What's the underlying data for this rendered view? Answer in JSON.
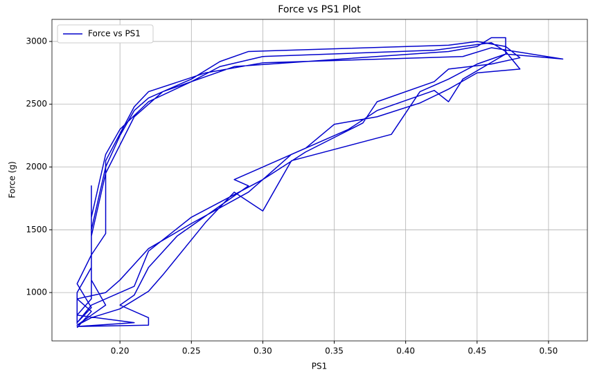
{
  "chart_data": {
    "type": "line",
    "title": "Force vs PS1 Plot",
    "x_label": "PS1",
    "y_label": "Force (g)",
    "x": [
      0.17,
      0.17,
      0.18,
      0.18,
      0.18,
      0.19,
      0.2,
      0.21,
      0.22,
      0.25,
      0.27,
      0.29,
      0.43,
      0.45,
      0.47,
      0.48,
      0.46,
      0.43,
      0.42,
      0.38,
      0.37,
      0.33,
      0.3,
      0.25,
      0.22,
      0.21,
      0.18,
      0.17,
      0.18,
      0.17,
      0.18,
      0.19,
      0.19,
      0.21,
      0.22,
      0.26,
      0.3,
      0.44,
      0.46,
      0.51,
      0.47,
      0.45,
      0.43,
      0.41,
      0.39,
      0.37,
      0.32,
      0.3,
      0.28,
      0.26,
      0.23,
      0.22,
      0.2,
      0.18,
      0.17,
      0.19,
      0.18,
      0.18,
      0.19,
      0.2,
      0.22,
      0.25,
      0.27,
      0.3,
      0.42,
      0.46,
      0.47,
      0.48,
      0.45,
      0.43,
      0.41,
      0.38,
      0.35,
      0.33,
      0.28,
      0.29,
      0.24,
      0.22,
      0.21,
      0.2,
      0.22,
      0.22,
      0.17,
      0.21,
      0.17,
      0.18,
      0.18,
      0.19,
      0.21,
      0.23,
      0.28,
      0.43,
      0.45,
      0.46,
      0.47,
      0.47,
      0.47,
      0.44,
      0.43,
      0.42,
      0.38,
      0.36,
      0.32,
      0.29,
      0.25,
      0.22,
      0.2,
      0.19,
      0.17,
      0.18,
      0.17
    ],
    "series": [
      {
        "name": "Force vs PS1",
        "color": "#0000cc",
        "values": [
          750,
          1000,
          1200,
          1850,
          1500,
          2000,
          2250,
          2450,
          2550,
          2700,
          2840,
          2920,
          2970,
          3000,
          2960,
          2870,
          2820,
          2780,
          2680,
          2520,
          2350,
          2120,
          1900,
          1600,
          1330,
          1050,
          900,
          760,
          880,
          1070,
          1300,
          1470,
          2050,
          2480,
          2600,
          2750,
          2830,
          2880,
          2950,
          2860,
          2900,
          2820,
          2700,
          2600,
          2260,
          2200,
          2050,
          1650,
          1800,
          1560,
          1140,
          1010,
          870,
          800,
          740,
          900,
          1100,
          1600,
          2100,
          2300,
          2520,
          2680,
          2800,
          2880,
          2930,
          2990,
          2920,
          2780,
          2750,
          2620,
          2510,
          2400,
          2340,
          2150,
          1900,
          1850,
          1450,
          1200,
          980,
          900,
          800,
          740,
          730,
          760,
          820,
          950,
          1450,
          1950,
          2400,
          2600,
          2800,
          2920,
          2960,
          3030,
          3030,
          2950,
          2900,
          2700,
          2520,
          2610,
          2450,
          2300,
          2100,
          1800,
          1550,
          1350,
          1100,
          1000,
          950,
          850,
          720
        ]
      }
    ],
    "xlim": [
      0.1524,
      0.5272
    ],
    "ylim": [
      615,
      3176
    ],
    "xticks": [
      {
        "value": 0.2,
        "label": "0.20"
      },
      {
        "value": 0.25,
        "label": "0.25"
      },
      {
        "value": 0.3,
        "label": "0.30"
      },
      {
        "value": 0.35,
        "label": "0.35"
      },
      {
        "value": 0.4,
        "label": "0.40"
      },
      {
        "value": 0.45,
        "label": "0.45"
      },
      {
        "value": 0.5,
        "label": "0.50"
      }
    ],
    "yticks": [
      1000,
      1500,
      2000,
      2500,
      3000
    ],
    "grid": true,
    "legend": "upper left"
  }
}
